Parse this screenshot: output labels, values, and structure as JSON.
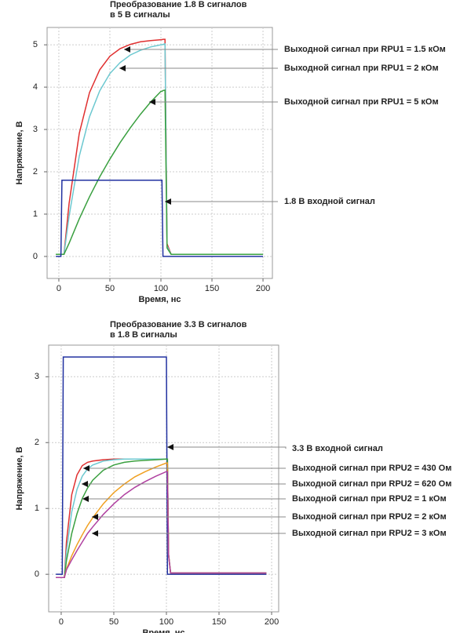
{
  "chart_data": [
    {
      "type": "line",
      "title": [
        "Преобразование 1.8 В сигналов",
        "в 5 В сигналы"
      ],
      "x_label": "Время, нс",
      "y_label": "Напряжение, В",
      "xlim": [
        -11.5,
        209.2
      ],
      "ylim": [
        -0.52,
        5.41
      ],
      "xticks": [
        0,
        50,
        100,
        150,
        200
      ],
      "yticks": [
        0,
        1,
        2,
        3,
        4,
        5
      ],
      "grid": true,
      "x": [
        -3,
        2,
        3,
        5,
        10,
        20,
        30,
        40,
        50,
        60,
        70,
        80,
        90,
        100,
        101,
        102,
        104,
        106,
        110,
        130,
        150,
        170,
        200
      ],
      "series": [
        {
          "name": "Выходной сигнал при RPU1 = 1.5 кОм",
          "color": "#e03030",
          "values": [
            0.05,
            0.05,
            0.05,
            0.05,
            1.25,
            2.91,
            3.87,
            4.41,
            4.73,
            4.91,
            5.01,
            5.07,
            5.1,
            5.12,
            5.12,
            5.13,
            5.13,
            0.3,
            0.05,
            0.05,
            0.05,
            0.05,
            0.05
          ]
        },
        {
          "name": "Выходной сигнал при RPU1 = 2 кОм",
          "color": "#6cc8d0",
          "values": [
            0.05,
            0.05,
            0.05,
            0.05,
            0.95,
            2.37,
            3.3,
            3.91,
            4.32,
            4.58,
            4.76,
            4.87,
            4.95,
            5.0,
            5.0,
            5.01,
            5.02,
            0.25,
            0.05,
            0.05,
            0.05,
            0.05,
            0.05
          ]
        },
        {
          "name": "Выходной сигнал при RPU1 = 5 кОм",
          "color": "#3aa040",
          "values": [
            0.05,
            0.05,
            0.05,
            0.05,
            0.31,
            0.89,
            1.41,
            1.88,
            2.3,
            2.69,
            3.04,
            3.36,
            3.65,
            3.9,
            3.9,
            3.92,
            3.93,
            0.2,
            0.05,
            0.05,
            0.05,
            0.05,
            0.05
          ]
        },
        {
          "name": "1.8 В входной сигнал",
          "color": "#2030a0",
          "values": [
            0,
            0,
            1.8,
            1.8,
            1.8,
            1.8,
            1.8,
            1.8,
            1.8,
            1.8,
            1.8,
            1.8,
            1.8,
            1.8,
            1.8,
            0,
            0,
            0,
            0,
            0,
            0,
            0,
            0
          ]
        }
      ]
    },
    {
      "type": "line",
      "title": [
        "Преобразование 3.3 В сигналов",
        "в 1.8 В сигналы"
      ],
      "x_label": "Время, нс",
      "y_label": "Напряжение, В",
      "xlim": [
        -11.9,
        206.7
      ],
      "ylim": [
        -0.57,
        3.48
      ],
      "xticks": [
        0,
        50,
        100,
        150,
        200
      ],
      "yticks": [
        0,
        1,
        2,
        3
      ],
      "grid": true,
      "x": [
        -5,
        1,
        2,
        3,
        5,
        10,
        15,
        20,
        25,
        30,
        40,
        50,
        60,
        70,
        80,
        90,
        100,
        101,
        102,
        104,
        110,
        130,
        150,
        170,
        195
      ],
      "series": [
        {
          "name": "3.3 В входной сигнал",
          "color": "#2030a0",
          "values": [
            0,
            0,
            3.3,
            3.3,
            3.3,
            3.3,
            3.3,
            3.3,
            3.3,
            3.3,
            3.3,
            3.3,
            3.3,
            3.3,
            3.3,
            3.3,
            3.3,
            0,
            0,
            0,
            0,
            0,
            0,
            0,
            0
          ]
        },
        {
          "name": "Выходной сигнал при RPU2 = 430 Ом",
          "color": "#e03030",
          "values": [
            -0.05,
            -0.05,
            -0.05,
            -0.05,
            0.5,
            1.21,
            1.51,
            1.65,
            1.7,
            1.72,
            1.74,
            1.75,
            1.75,
            1.75,
            1.75,
            1.75,
            1.75,
            1.75,
            0.3,
            0.02,
            0.02,
            0.02,
            0.02,
            0.02,
            0.02
          ]
        },
        {
          "name": "Выходной сигнал при RPU2 = 620 Ом",
          "color": "#6cc8d0",
          "values": [
            -0.05,
            -0.05,
            -0.05,
            -0.05,
            0.35,
            0.95,
            1.29,
            1.49,
            1.6,
            1.66,
            1.72,
            1.74,
            1.75,
            1.75,
            1.75,
            1.75,
            1.75,
            1.75,
            0.3,
            0.02,
            0.02,
            0.02,
            0.02,
            0.02,
            0.02
          ]
        },
        {
          "name": "Выходной сигнал при RPU2 = 1 кОм",
          "color": "#3aa040",
          "values": [
            -0.05,
            -0.05,
            -0.05,
            -0.05,
            0.21,
            0.62,
            0.92,
            1.15,
            1.31,
            1.43,
            1.58,
            1.66,
            1.7,
            1.72,
            1.73,
            1.74,
            1.75,
            1.75,
            0.3,
            0.02,
            0.02,
            0.02,
            0.02,
            0.02,
            0.02
          ]
        },
        {
          "name": "Выходной сигнал при RPU2 = 2 кОм",
          "color": "#f0a020",
          "values": [
            -0.05,
            -0.05,
            -0.05,
            -0.05,
            0.08,
            0.28,
            0.45,
            0.6,
            0.74,
            0.86,
            1.07,
            1.24,
            1.37,
            1.48,
            1.56,
            1.63,
            1.69,
            1.69,
            0.3,
            0.02,
            0.02,
            0.02,
            0.02,
            0.02,
            0.02
          ]
        },
        {
          "name": "Выходной сигнал при RPU2 = 3 кОм",
          "color": "#b040a0",
          "values": [
            -0.05,
            -0.05,
            -0.05,
            -0.05,
            0.07,
            0.22,
            0.36,
            0.49,
            0.62,
            0.72,
            0.91,
            1.07,
            1.21,
            1.32,
            1.41,
            1.49,
            1.56,
            1.56,
            0.3,
            0.02,
            0.02,
            0.02,
            0.02,
            0.02,
            0.02
          ]
        }
      ]
    }
  ]
}
